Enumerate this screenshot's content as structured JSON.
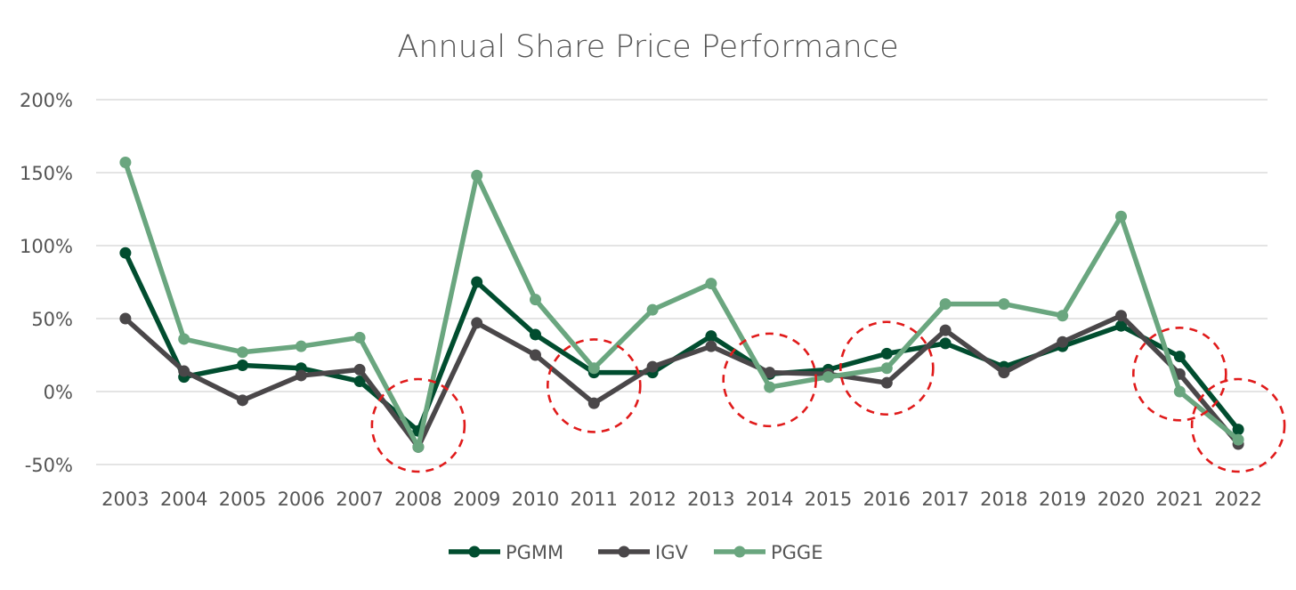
{
  "chart_data": {
    "type": "line",
    "title": "Annual Share Price Performance",
    "xlabel": "",
    "ylabel": "",
    "categories": [
      "2003",
      "2004",
      "2005",
      "2006",
      "2007",
      "2008",
      "2009",
      "2010",
      "2011",
      "2012",
      "2013",
      "2014",
      "2015",
      "2016",
      "2017",
      "2018",
      "2019",
      "2020",
      "2021",
      "2022"
    ],
    "ylim": [
      -50,
      200
    ],
    "yticks": [
      {
        "value": 200,
        "label": "200%"
      },
      {
        "value": 150,
        "label": "150%"
      },
      {
        "value": 100,
        "label": "100%"
      },
      {
        "value": 50,
        "label": "50%"
      },
      {
        "value": 0,
        "label": "0%"
      },
      {
        "value": -50,
        "label": "-50%"
      }
    ],
    "grid": true,
    "legend_position": "bottom",
    "series": [
      {
        "name": "PGMM",
        "color": "#014d2f",
        "values": [
          95,
          10,
          18,
          16,
          7,
          -27,
          75,
          39,
          13,
          13,
          38,
          12,
          15,
          26,
          33,
          17,
          31,
          45,
          24,
          -26
        ]
      },
      {
        "name": "IGV",
        "color": "#4a4749",
        "values": [
          50,
          14,
          -6,
          11,
          15,
          -38,
          47,
          25,
          -8,
          17,
          31,
          13,
          12,
          6,
          42,
          13,
          34,
          52,
          12,
          -36
        ]
      },
      {
        "name": "PGGE",
        "color": "#6aa67f",
        "values": [
          157,
          36,
          27,
          31,
          37,
          -38,
          148,
          63,
          16,
          56,
          74,
          3,
          10,
          16,
          60,
          60,
          52,
          120,
          0,
          -33
        ]
      }
    ],
    "highlighted_categories": [
      "2008",
      "2011",
      "2014",
      "2016",
      "2021",
      "2022"
    ],
    "highlight_color": "#e01b1b"
  }
}
